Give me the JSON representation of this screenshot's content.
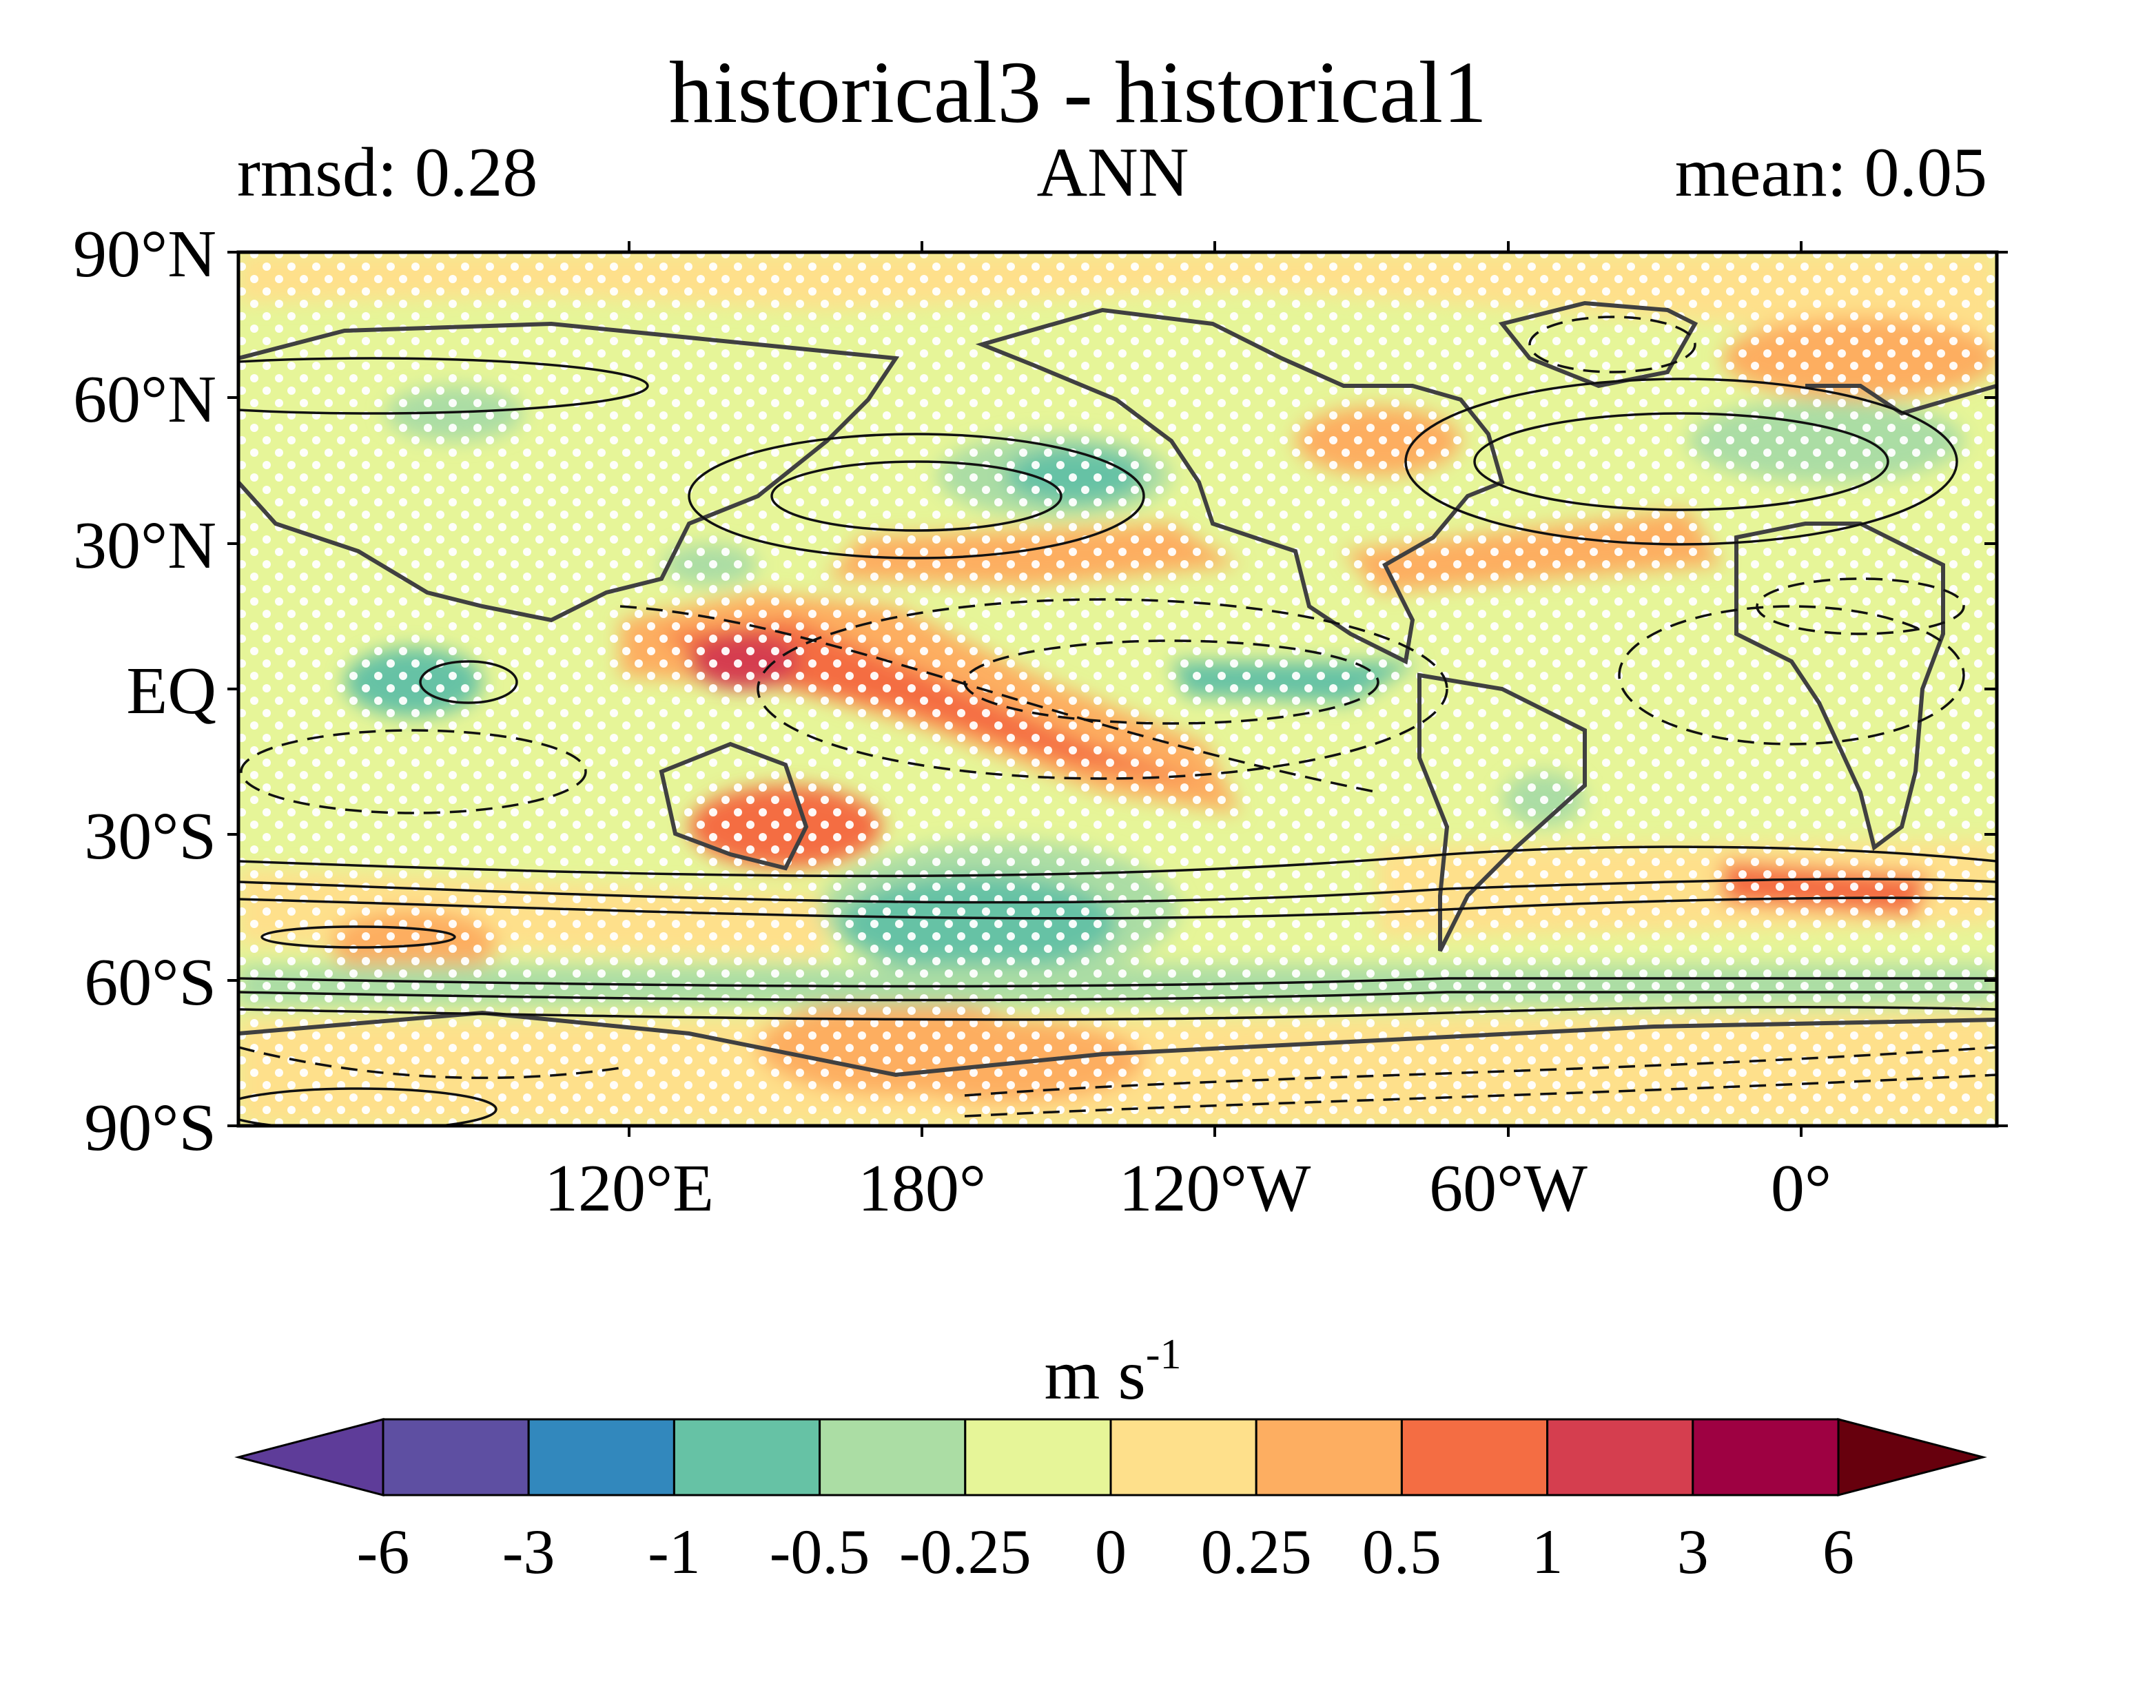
{
  "title": "historical3 - historical1",
  "left_label": "rmsd: 0.28",
  "center_label": "ANN",
  "right_label": "mean: 0.05",
  "map": {
    "projection": "equirectangular",
    "longitude_range": [
      23,
      383
    ],
    "latitude_range": [
      -90,
      90
    ],
    "y_ticks": [
      "90°N",
      "60°N",
      "30°N",
      "EQ",
      "30°S",
      "60°S",
      "90°S"
    ],
    "x_ticks": [
      "120°E",
      "180°",
      "120°W",
      "60°W",
      "0°"
    ],
    "stippling": "white dots",
    "overlay": "black contour lines, solid positive and dashed negative"
  },
  "colorbar": {
    "units_base": "m s",
    "units_exp": "-1",
    "levels": [
      "-6",
      "-3",
      "-1",
      "-0.5",
      "-0.25",
      "0",
      "0.25",
      "0.5",
      "1",
      "3",
      "6"
    ],
    "colors": [
      "#5e3c99",
      "#5e4fa2",
      "#3288bd",
      "#66c2a5",
      "#abdda4",
      "#e6f598",
      "#fee08b",
      "#fdae61",
      "#f46d43",
      "#d53e4f",
      "#9e0142",
      "#67000d"
    ],
    "extend": "both"
  }
}
